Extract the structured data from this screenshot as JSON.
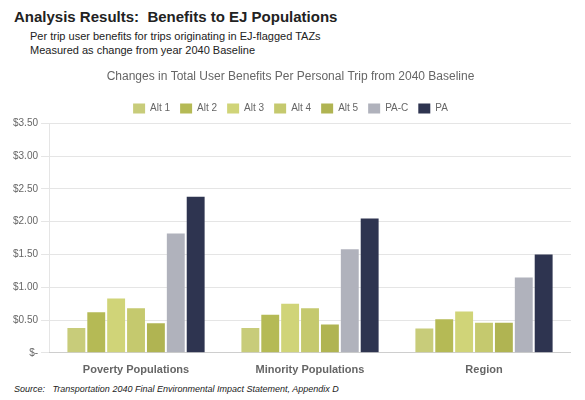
{
  "chart_data": {
    "type": "bar",
    "title": "Changes in Total User Benefits Per Personal Trip from 2040 Baseline",
    "subtitle": [
      "Per trip user benefits for trips originating in EJ-flagged TAZs",
      "Measured as change from year 2040 Baseline"
    ],
    "annotations": [
      "Analysis Results:  Benefits to EJ Populations",
      "Source:   Transportation 2040 Final Environmental Impact Statement, Appendix D"
    ],
    "categories": [
      "Poverty Populations",
      "Minority Populations",
      "Region"
    ],
    "series": [
      {
        "name": "Alt 1",
        "color": "#c8cc7a",
        "values": [
          0.38,
          0.38,
          0.37
        ]
      },
      {
        "name": "Alt 2",
        "color": "#b5ba55",
        "values": [
          0.62,
          0.58,
          0.51
        ]
      },
      {
        "name": "Alt 3",
        "color": "#d0d478",
        "values": [
          0.83,
          0.75,
          0.63
        ]
      },
      {
        "name": "Alt 4",
        "color": "#c5c96e",
        "values": [
          0.68,
          0.68,
          0.46
        ]
      },
      {
        "name": "Alt 5",
        "color": "#b0b452",
        "values": [
          0.45,
          0.43,
          0.46
        ]
      },
      {
        "name": "PA-C",
        "color": "#b0b2bc",
        "values": [
          1.82,
          1.58,
          1.15
        ]
      },
      {
        "name": "PA",
        "color": "#2e3450",
        "values": [
          2.38,
          2.05,
          1.5
        ]
      }
    ],
    "ylim": [
      0,
      3.5
    ],
    "yticks": [
      {
        "value": 0,
        "label": "$-"
      },
      {
        "value": 0.5,
        "label": "$0.50"
      },
      {
        "value": 1.0,
        "label": "$1.00"
      },
      {
        "value": 1.5,
        "label": "$1.50"
      },
      {
        "value": 2.0,
        "label": "$2.00"
      },
      {
        "value": 2.5,
        "label": "$2.50"
      },
      {
        "value": 3.0,
        "label": "$3.00"
      },
      {
        "value": 3.5,
        "label": "$3.50"
      }
    ],
    "grid": true,
    "legend": "top"
  }
}
